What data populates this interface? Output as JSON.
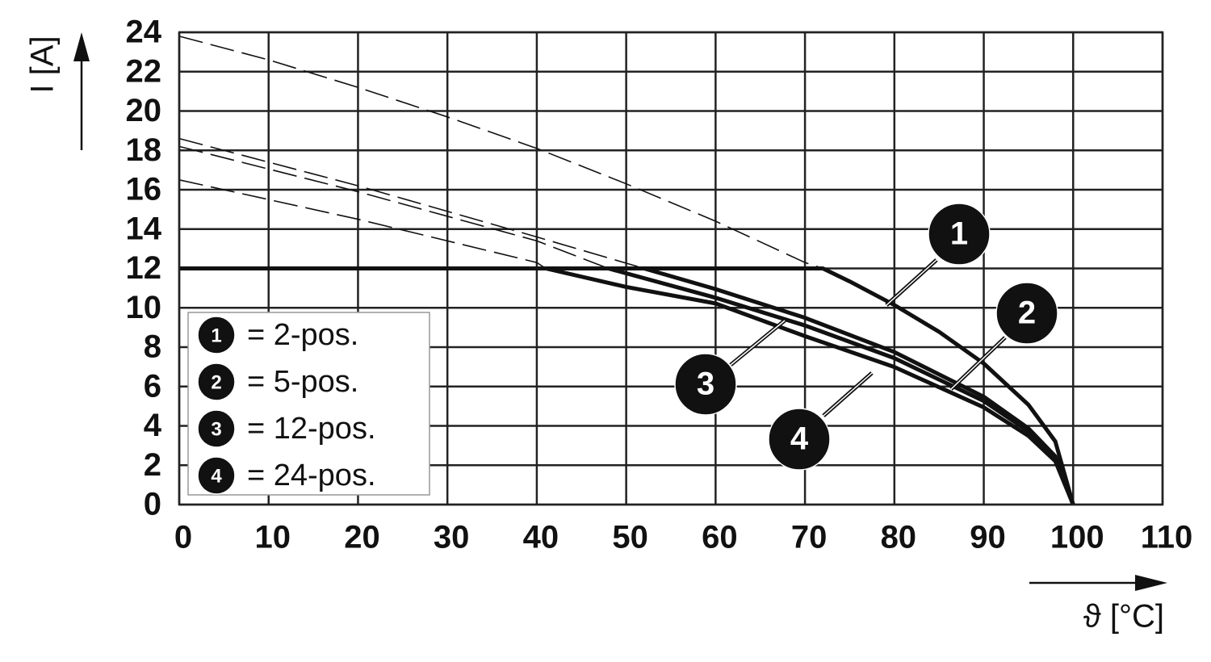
{
  "chart_data": {
    "type": "line",
    "xlabel": "ϑ [°C]",
    "ylabel": "I [A]",
    "xlim": [
      0,
      110
    ],
    "xticks": [
      0,
      10,
      20,
      30,
      40,
      50,
      60,
      70,
      80,
      90,
      100,
      110
    ],
    "ylim": [
      0,
      24
    ],
    "yticks": [
      0,
      2,
      4,
      6,
      8,
      10,
      12,
      14,
      16,
      18,
      20,
      22,
      24
    ],
    "grid": true,
    "legend": "lower left",
    "series": [
      {
        "name": "= 2-pos.",
        "badge": "1",
        "color": "#111111",
        "x": [
          0,
          72,
          75,
          80,
          85,
          90,
          95,
          98,
          100
        ],
        "values": [
          12,
          12,
          11.34,
          10.14,
          8.78,
          7.17,
          5.07,
          3.21,
          0
        ],
        "extrapolation": {
          "x": [
            0,
            10,
            20,
            30,
            40,
            50,
            60,
            70,
            72
          ],
          "values": [
            23.8,
            22.6,
            21.2,
            19.7,
            18.1,
            16.3,
            14.4,
            12.3,
            12
          ]
        }
      },
      {
        "name": "= 5-pos.",
        "badge": "2",
        "color": "#111111",
        "x": [
          52,
          60,
          70,
          80,
          90,
          95,
          98,
          100
        ],
        "values": [
          12,
          10.95,
          9.49,
          7.75,
          5.48,
          3.87,
          2.45,
          0
        ],
        "extrapolation": {
          "x": [
            0,
            20,
            40,
            52
          ],
          "values": [
            18.6,
            16.2,
            13.6,
            12
          ]
        }
      },
      {
        "name": "= 12-pos.",
        "badge": "3",
        "color": "#111111",
        "x": [
          48,
          60,
          70,
          80,
          90,
          95,
          98,
          100
        ],
        "values": [
          12,
          10.51,
          9.1,
          7.44,
          5.26,
          3.72,
          2.35,
          0
        ],
        "extrapolation": {
          "x": [
            0,
            20,
            40,
            48
          ],
          "values": [
            18.2,
            15.9,
            13.4,
            12
          ]
        }
      },
      {
        "name": "= 24-pos.",
        "badge": "4",
        "color": "#111111",
        "x": [
          41,
          50,
          60,
          70,
          80,
          90,
          95,
          98,
          100
        ],
        "values": [
          12,
          11.06,
          10.22,
          8.56,
          6.99,
          4.94,
          3.49,
          2.21,
          0
        ],
        "extrapolation": {
          "x": [
            0,
            20,
            40,
            41
          ],
          "values": [
            16.5,
            14.5,
            12.3,
            12
          ]
        }
      }
    ]
  }
}
